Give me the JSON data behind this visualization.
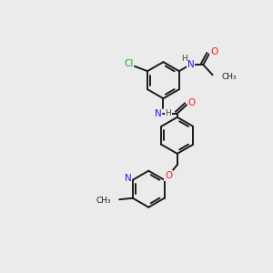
{
  "bg_color": "#ebebeb",
  "atom_colors": {
    "C": "#1a1a1a",
    "N": "#2020ff",
    "O": "#ff2020",
    "Cl": "#22aa22",
    "H": "#444444"
  },
  "bond_color": "#1a1a1a",
  "figsize": [
    3.0,
    3.0
  ],
  "dpi": 100
}
